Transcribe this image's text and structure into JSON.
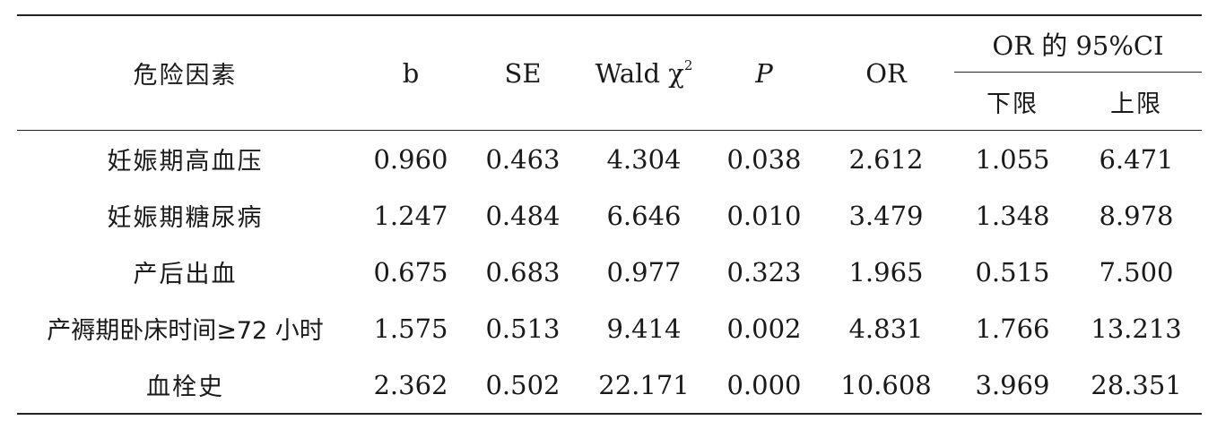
{
  "table": {
    "headers": {
      "factor": "危险因素",
      "b": "b",
      "se": "SE",
      "wald": "Wald χ",
      "wald_sup": "2",
      "p": "P",
      "or": "OR",
      "ci_group": "OR 的 95%CI",
      "ci_lower": "下限",
      "ci_upper": "上限"
    },
    "rows": [
      {
        "factor": "妊娠期高血压",
        "b": "0.960",
        "se": "0.463",
        "wald": "4.304",
        "p": "0.038",
        "or": "2.612",
        "lower": "1.055",
        "upper": "6.471"
      },
      {
        "factor": "妊娠期糖尿病",
        "b": "1.247",
        "se": "0.484",
        "wald": "6.646",
        "p": "0.010",
        "or": "3.479",
        "lower": "1.348",
        "upper": "8.978"
      },
      {
        "factor": "产后出血",
        "b": "0.675",
        "se": "0.683",
        "wald": "0.977",
        "p": "0.323",
        "or": "1.965",
        "lower": "0.515",
        "upper": "7.500"
      },
      {
        "factor": "产褥期卧床时间≥72 小时",
        "b": "1.575",
        "se": "0.513",
        "wald": "9.414",
        "p": "0.002",
        "or": "4.831",
        "lower": "1.766",
        "upper": "13.213"
      },
      {
        "factor": "血栓史",
        "b": "2.362",
        "se": "0.502",
        "wald": "22.171",
        "p": "0.000",
        "or": "10.608",
        "lower": "3.969",
        "upper": "28.351"
      }
    ]
  }
}
